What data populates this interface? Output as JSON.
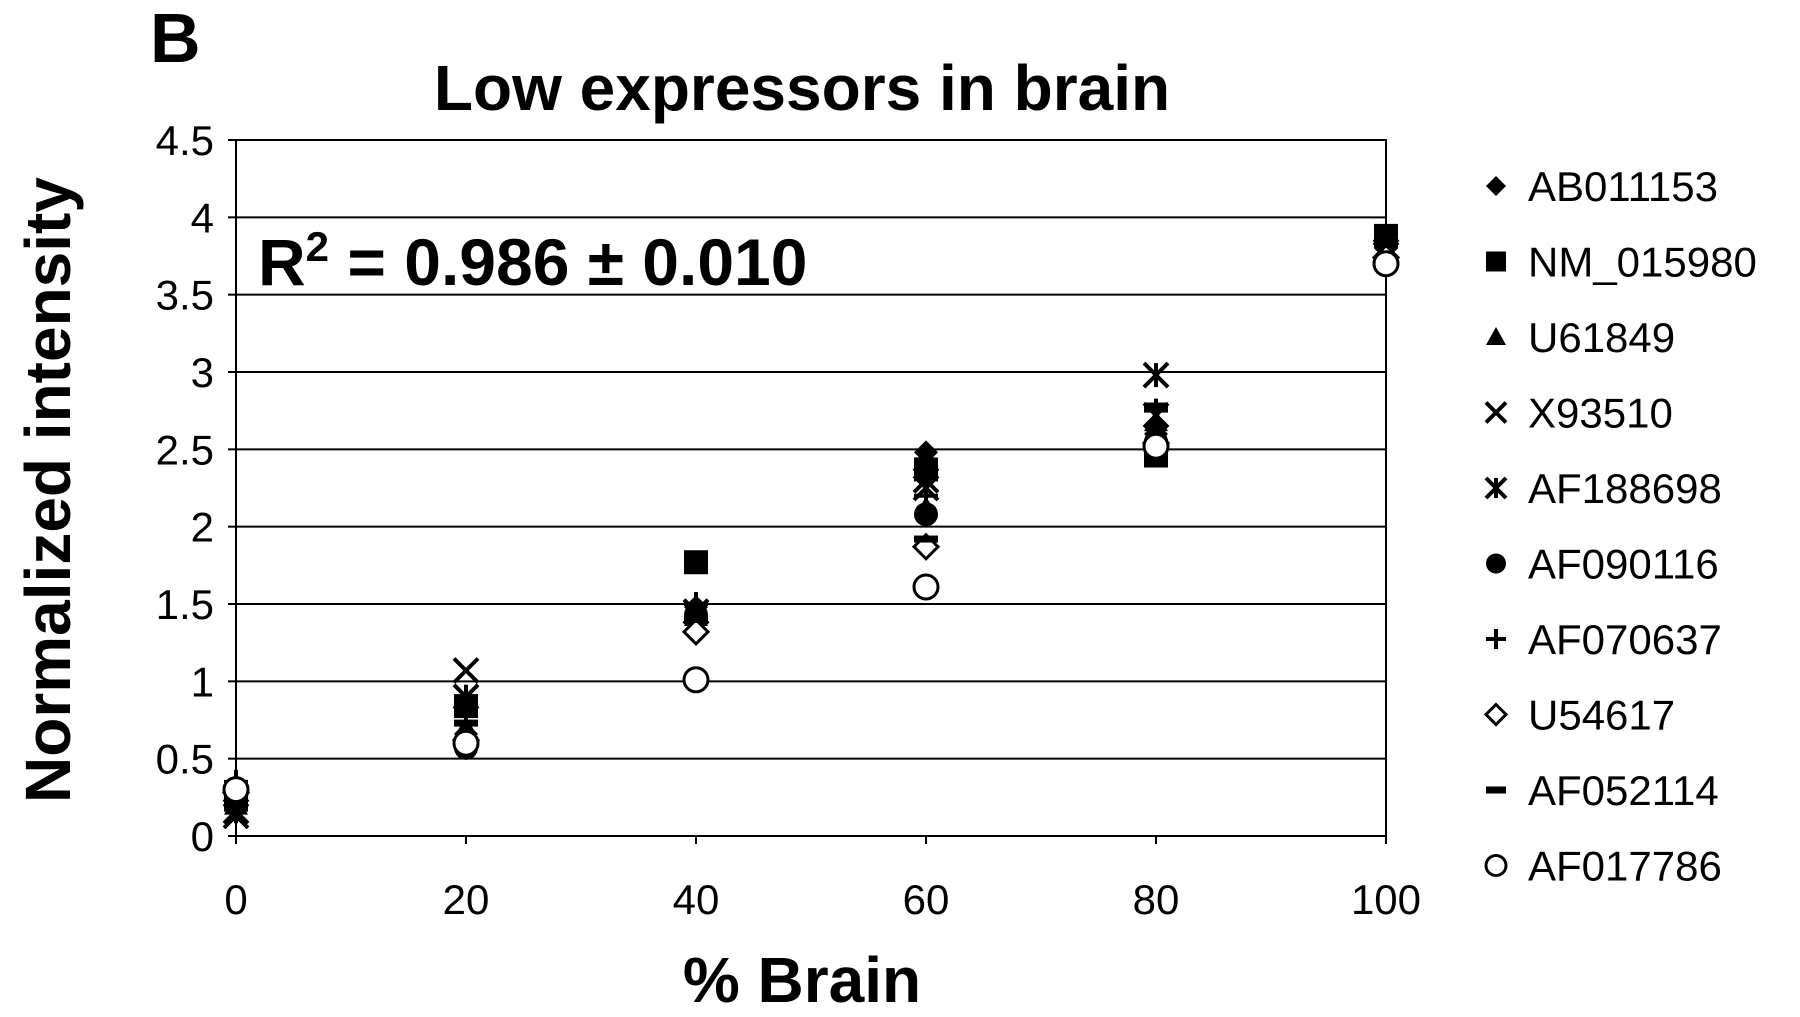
{
  "panel_label": "B",
  "chart_data": {
    "type": "scatter",
    "title": "Low expressors in brain",
    "xlabel": "% Brain",
    "ylabel": "Normalized intensity",
    "xlim": [
      0,
      100
    ],
    "ylim": [
      0,
      4.5
    ],
    "x_ticks": [
      "0",
      "20",
      "40",
      "60",
      "80",
      "100"
    ],
    "y_ticks": [
      "0",
      "0.5",
      "1",
      "1.5",
      "2",
      "2.5",
      "3",
      "3.5",
      "4",
      "4.5"
    ],
    "grid": "horizontal",
    "legend_position": "right",
    "annotation": {
      "r": "R",
      "sup": "2",
      "rest": " = 0.986 ± 0.010"
    },
    "x": [
      0,
      20,
      40,
      60,
      80,
      100
    ],
    "series": [
      {
        "name": "AB011153",
        "marker": "diamond-filled",
        "values": [
          0.22,
          0.66,
          1.48,
          2.48,
          2.6,
          3.8
        ]
      },
      {
        "name": "NM_015980",
        "marker": "square-filled",
        "values": [
          0.25,
          0.84,
          1.77,
          2.37,
          2.46,
          3.88
        ]
      },
      {
        "name": "U61849",
        "marker": "triangle-filled",
        "values": [
          0.2,
          0.7,
          1.42,
          2.12,
          2.68,
          3.75
        ]
      },
      {
        "name": "X93510",
        "marker": "x",
        "values": [
          0.13,
          1.07,
          1.45,
          2.25,
          2.72,
          3.76
        ]
      },
      {
        "name": "AF188698",
        "marker": "asterisk",
        "values": [
          0.16,
          0.9,
          1.45,
          2.3,
          2.98,
          3.78
        ]
      },
      {
        "name": "AF090116",
        "marker": "circle-filled",
        "values": [
          0.21,
          0.57,
          1.43,
          2.08,
          2.55,
          3.72
        ]
      },
      {
        "name": "AF070637",
        "marker": "plus",
        "values": [
          0.35,
          0.78,
          1.5,
          2.2,
          2.75,
          3.82
        ]
      },
      {
        "name": "U54617",
        "marker": "diamond-open",
        "values": [
          0.28,
          0.62,
          1.32,
          1.87,
          2.54,
          3.74
        ]
      },
      {
        "name": "AF052114",
        "marker": "dash",
        "values": [
          0.18,
          0.73,
          1.4,
          1.92,
          2.78,
          3.86
        ]
      },
      {
        "name": "AF017786",
        "marker": "circle-open",
        "values": [
          0.3,
          0.6,
          1.01,
          1.61,
          2.52,
          3.7
        ]
      }
    ]
  }
}
